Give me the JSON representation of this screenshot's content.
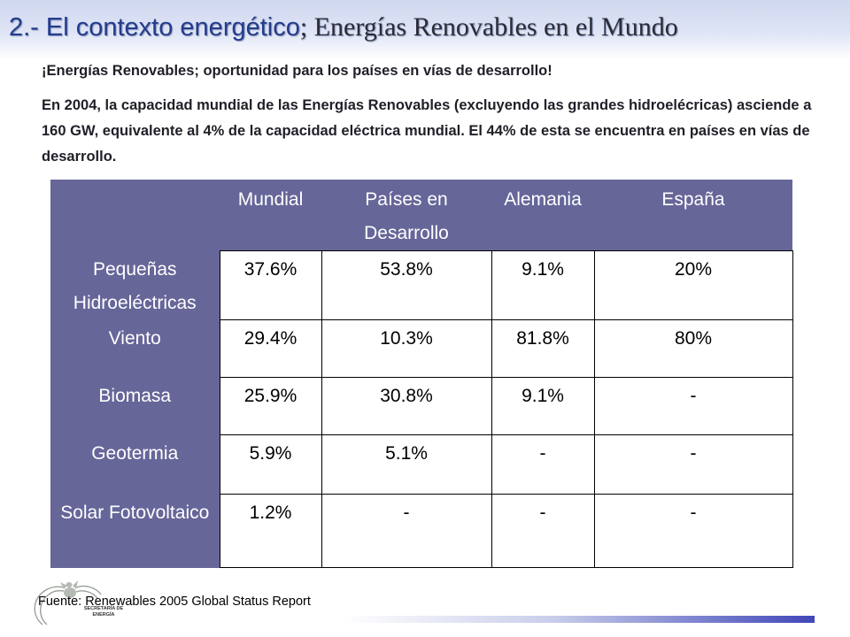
{
  "header": {
    "title_main": "2.- El contexto energético",
    "title_bold": "; Energías Renovables en el Mundo"
  },
  "intro": {
    "line1": "¡Energías Renovables; oportunidad para los países en vías de desarrollo!",
    "paragraph": "En 2004, la capacidad mundial de las Energías Renovables (excluyendo las grandes hidroelécricas) asciende a 160 GW, equivalente al 4% de la capacidad eléctrica mundial. El 44% de esta se encuentra en países en vías de desarrollo."
  },
  "table": {
    "columns": [
      "",
      "Mundial",
      "Países en Desarrollo",
      "Alemania",
      "España"
    ],
    "rows": [
      [
        "Pequeñas Hidroeléctricas",
        "37.6%",
        "53.8%",
        "9.1%",
        "20%"
      ],
      [
        "Viento",
        "29.4%",
        "10.3%",
        "81.8%",
        "80%"
      ],
      [
        "Biomasa",
        "25.9%",
        "30.8%",
        "9.1%",
        "-"
      ],
      [
        "Geotermia",
        "5.9%",
        "5.1%",
        "-",
        "-"
      ],
      [
        "Solar Fotovoltaico",
        "1.2%",
        "-",
        "-",
        "-"
      ]
    ]
  },
  "footer": {
    "source": "Fuente: Renewables 2005 Global Status Report",
    "logo_text": "SECRETARÍA DE ENERGÍA"
  },
  "colors": {
    "header_cell": "#666699",
    "title_blue": "#243c8c",
    "footer_bar_end": "#4047b8"
  }
}
